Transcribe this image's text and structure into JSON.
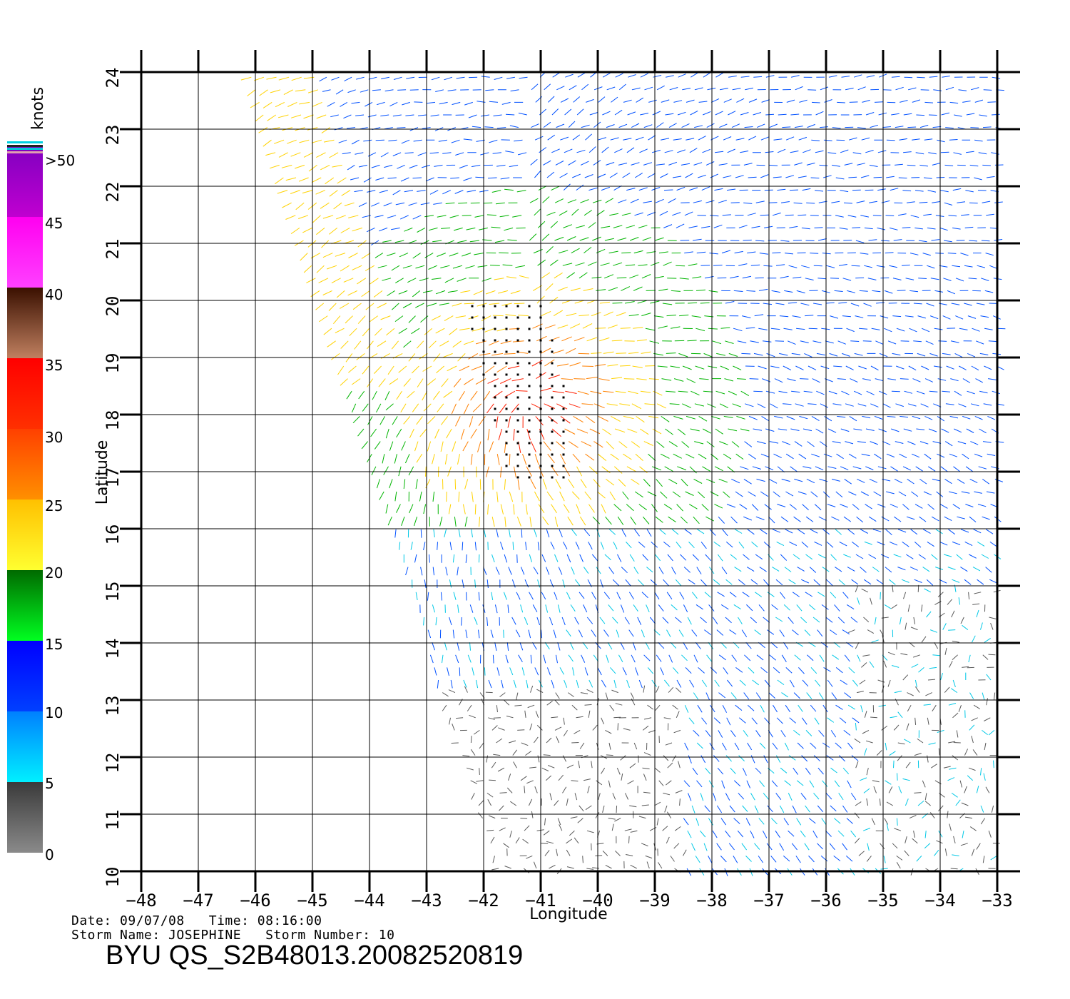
{
  "chart_data": {
    "type": "wind-vector-map",
    "xlabel": "Longitude",
    "ylabel": "Latitude",
    "xlim": [
      -48,
      -33
    ],
    "ylim": [
      10,
      24
    ],
    "x_ticks": [
      "−48",
      "−47",
      "−46",
      "−45",
      "−44",
      "−43",
      "−42",
      "−41",
      "−40",
      "−39",
      "−38",
      "−37",
      "−36",
      "−35",
      "−34",
      "−33"
    ],
    "y_ticks": [
      "10",
      "11",
      "12",
      "13",
      "14",
      "15",
      "16",
      "17",
      "18",
      "19",
      "20",
      "21",
      "22",
      "23",
      "24"
    ],
    "grid": true,
    "storm_center": {
      "lon": -41.2,
      "lat": 18.2
    },
    "colorbar": {
      "units": "knots",
      "labels": [
        "0",
        "5",
        "10",
        "15",
        "20",
        "25",
        "30",
        "35",
        "40",
        "45",
        ">50"
      ],
      "colors": {
        "0-5": "#5a5a5a",
        "5-10": "#00c8e6",
        "10-15": "#0050ff",
        "15-20": "#00b400",
        "20-25": "#ffd200",
        "25-30": "#ff8000",
        "30-35": "#ff1e00",
        "35-40": "#8a4a2a",
        "40-45": "#ff00ff",
        "45-50": "#9a00cc",
        ">50": "#6000c0"
      }
    }
  },
  "info": {
    "date_line": "Date: 09/07/08   Time: 08:16:00",
    "storm_line": "Storm Name: JOSEPHINE   Storm Number: 10",
    "title": "BYU QS_S2B48013.20082520819"
  }
}
